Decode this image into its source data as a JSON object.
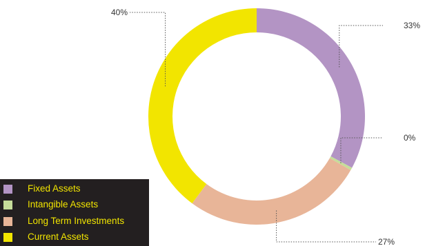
{
  "chart_data": {
    "type": "pie",
    "style": "donut",
    "series": [
      {
        "name": "Fixed Assets",
        "value": 33,
        "label": "33%",
        "color": "#b394c4"
      },
      {
        "name": "Intangible Assets",
        "value": 0.4,
        "label": "0%",
        "color": "#c6dd9a"
      },
      {
        "name": "Long Term Investments",
        "value": 27,
        "label": "27%",
        "color": "#e8b598"
      },
      {
        "name": "Current Assets",
        "value": 40,
        "label": "40%",
        "color": "#f2e500"
      }
    ],
    "legend": {
      "placement": "bottom-left",
      "background": "#231f20",
      "text_color": "#f2e500"
    }
  }
}
